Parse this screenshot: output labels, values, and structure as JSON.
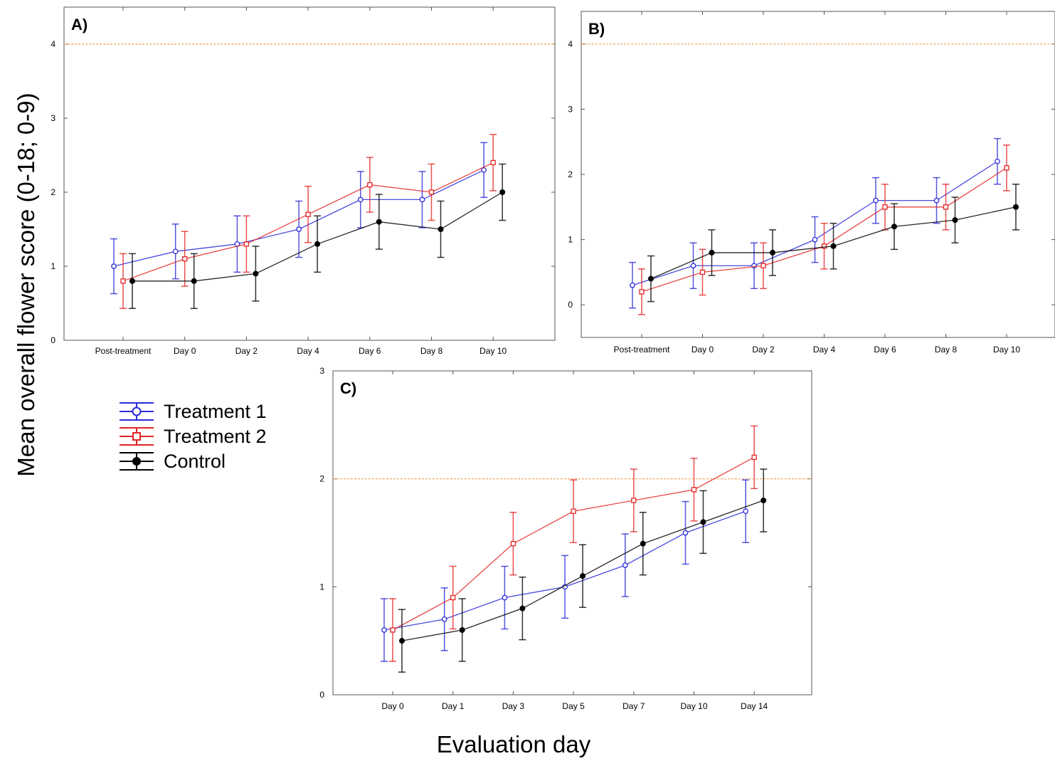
{
  "figure": {
    "ylabel": "Mean overall flower score (0-18; 0-9)",
    "xlabel": "Evaluation day"
  },
  "legend": {
    "items": [
      {
        "label": "Treatment 1",
        "color": "#2a2ad8",
        "marker": "circle-open"
      },
      {
        "label": "Treatment 2",
        "color": "#e32424",
        "marker": "square-open"
      },
      {
        "label": "Control",
        "color": "#000000",
        "marker": "circle-filled"
      }
    ]
  },
  "chart_data": [
    {
      "panel": "A)",
      "type": "line",
      "categories": [
        "Post-treatment",
        "Day 0",
        "Day 2",
        "Day 4",
        "Day 6",
        "Day 8",
        "Day 10"
      ],
      "ylim": [
        0,
        4.5
      ],
      "yticks": [
        0,
        1,
        2,
        3,
        4
      ],
      "reference_line": 4,
      "series": [
        {
          "name": "Treatment 1",
          "values": [
            1.0,
            1.2,
            1.3,
            1.5,
            1.9,
            1.9,
            2.3
          ],
          "error": [
            0.37,
            0.37,
            0.38,
            0.38,
            0.38,
            0.38,
            0.37
          ]
        },
        {
          "name": "Treatment 2",
          "values": [
            0.8,
            1.1,
            1.3,
            1.7,
            2.1,
            2.0,
            2.4
          ],
          "error": [
            0.37,
            0.37,
            0.38,
            0.38,
            0.37,
            0.38,
            0.38
          ]
        },
        {
          "name": "Control",
          "values": [
            0.8,
            0.8,
            0.9,
            1.3,
            1.6,
            1.5,
            2.0
          ],
          "error": [
            0.37,
            0.37,
            0.37,
            0.38,
            0.37,
            0.38,
            0.38
          ]
        }
      ]
    },
    {
      "panel": "B)",
      "type": "line",
      "categories": [
        "Post-treatment",
        "Day 0",
        "Day 2",
        "Day 4",
        "Day 6",
        "Day 8",
        "Day 10"
      ],
      "ylim": [
        -0.5,
        4.5
      ],
      "yticks": [
        0,
        1,
        2,
        3,
        4
      ],
      "reference_line": 4,
      "series": [
        {
          "name": "Treatment 1",
          "values": [
            0.3,
            0.6,
            0.6,
            1.0,
            1.6,
            1.6,
            2.2
          ],
          "error": [
            0.35,
            0.35,
            0.35,
            0.35,
            0.35,
            0.35,
            0.35
          ]
        },
        {
          "name": "Treatment 2",
          "values": [
            0.2,
            0.5,
            0.6,
            0.9,
            1.5,
            1.5,
            2.1
          ],
          "error": [
            0.35,
            0.35,
            0.35,
            0.35,
            0.35,
            0.35,
            0.35
          ]
        },
        {
          "name": "Control",
          "values": [
            0.4,
            0.8,
            0.8,
            0.9,
            1.2,
            1.3,
            1.5
          ],
          "error": [
            0.35,
            0.35,
            0.35,
            0.35,
            0.35,
            0.35,
            0.35
          ]
        }
      ]
    },
    {
      "panel": "C)",
      "type": "line",
      "categories": [
        "Day 0",
        "Day 1",
        "Day 3",
        "Day 5",
        "Day 7",
        "Day 10",
        "Day 14"
      ],
      "ylim": [
        0,
        3
      ],
      "yticks": [
        0,
        1,
        2,
        3
      ],
      "reference_line": 2,
      "series": [
        {
          "name": "Treatment 1",
          "values": [
            0.6,
            0.7,
            0.9,
            1.0,
            1.2,
            1.5,
            1.7
          ],
          "error": [
            0.29,
            0.29,
            0.29,
            0.29,
            0.29,
            0.29,
            0.29
          ]
        },
        {
          "name": "Treatment 2",
          "values": [
            0.6,
            0.9,
            1.4,
            1.7,
            1.8,
            1.9,
            2.2
          ],
          "error": [
            0.29,
            0.29,
            0.29,
            0.29,
            0.29,
            0.29,
            0.29
          ]
        },
        {
          "name": "Control",
          "values": [
            0.5,
            0.6,
            0.8,
            1.1,
            1.4,
            1.6,
            1.8
          ],
          "error": [
            0.29,
            0.29,
            0.29,
            0.29,
            0.29,
            0.29,
            0.29
          ]
        }
      ]
    }
  ]
}
